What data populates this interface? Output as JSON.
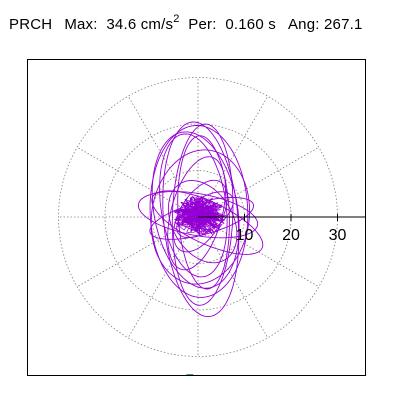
{
  "header": {
    "station": "PRCH",
    "max_label": "Max:",
    "max_value": "34.6 cm/s",
    "max_exp": "2",
    "per_label": "Per:",
    "per_value": "0.160 s",
    "ang_label": "Ang:",
    "ang_value": "267.1"
  },
  "chart_data": {
    "type": "polar-particle-motion",
    "title": "",
    "radial_ticks": [
      10,
      20,
      30
    ],
    "radial_tick_labels": [
      "10",
      "20",
      "30"
    ],
    "grid": "dotted",
    "grid_spokes_deg": [
      0,
      30,
      60,
      90,
      120,
      150,
      180,
      210,
      240,
      270,
      300,
      330
    ],
    "max_value": 34.6,
    "max_units": "cm/s^2",
    "period_s": 0.16,
    "angle_deg": 267.1,
    "colors": {
      "trace": "#9400D3",
      "grid": "#808080",
      "axis": "#000000",
      "marker": "#009473"
    },
    "trace_ellipses": [
      {
        "a": 21.0,
        "b": 8.0,
        "rot": 95,
        "cx": 0.6,
        "cy": -0.5
      },
      {
        "a": 18.5,
        "b": 10.5,
        "rot": 92,
        "cx": 0.2,
        "cy": 1.2
      },
      {
        "a": 19.5,
        "b": 6.5,
        "rot": 88,
        "cx": 1.0,
        "cy": 0.5
      },
      {
        "a": 17.0,
        "b": 9.0,
        "rot": 100,
        "cx": -0.5,
        "cy": 1.5
      },
      {
        "a": 14.5,
        "b": 10.5,
        "rot": 82,
        "cx": 0.5,
        "cy": 0.0
      },
      {
        "a": 16.5,
        "b": 5.5,
        "rot": 93,
        "cx": 1.2,
        "cy": 1.0
      },
      {
        "a": 12.5,
        "b": 5.5,
        "rot": 75,
        "cx": -0.3,
        "cy": 0.8
      },
      {
        "a": 13.0,
        "b": 4.5,
        "rot": 170,
        "cx": 0.0,
        "cy": 0.5
      },
      {
        "a": 11.5,
        "b": 3.5,
        "rot": 15,
        "cx": 0.8,
        "cy": -0.3
      },
      {
        "a": 13.0,
        "b": 4.5,
        "rot": 155,
        "cx": 2.0,
        "cy": -1.2
      },
      {
        "a": 9.5,
        "b": 6.5,
        "rot": 120,
        "cx": 1.0,
        "cy": -1.0
      },
      {
        "a": 8.5,
        "b": 4.5,
        "rot": 60,
        "cx": 0.5,
        "cy": 0.2
      },
      {
        "a": 15.5,
        "b": 7.0,
        "rot": 98,
        "cx": -1.0,
        "cy": 2.5
      },
      {
        "a": 7.0,
        "b": 3.5,
        "rot": 35,
        "cx": 1.5,
        "cy": 0.5
      }
    ],
    "core_scribble": {
      "count": 260,
      "radius": 5.0,
      "center": [
        0.4,
        0.2
      ]
    },
    "peak_marker": {
      "r": 34.6,
      "angle_deg": 267.1
    }
  }
}
